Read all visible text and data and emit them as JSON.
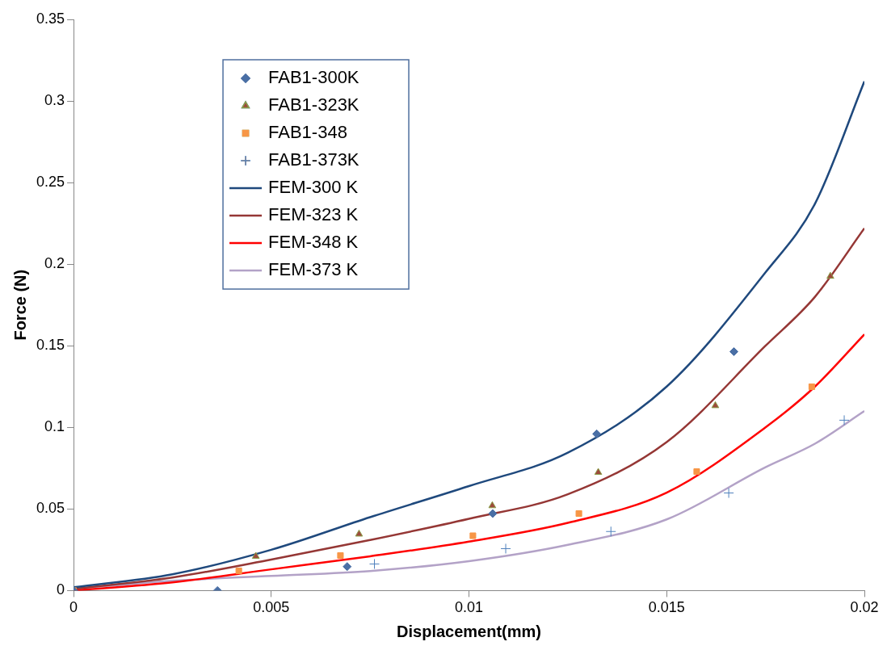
{
  "chart_data": {
    "type": "scatter",
    "xlabel": "Displacement(mm)",
    "ylabel": "Force (N)",
    "xlim": [
      0,
      0.02
    ],
    "ylim": [
      0,
      0.35
    ],
    "xticks": [
      0,
      0.005,
      0.01,
      0.015,
      0.02
    ],
    "yticks": [
      0,
      0.05,
      0.1,
      0.15,
      0.2,
      0.25,
      0.3,
      0.35
    ],
    "grid": false,
    "legend": "top left",
    "series": [
      {
        "name": "FAB1-300K",
        "marker": "diamond",
        "color": "#4a6fa5",
        "x": [
          0,
          0.00364,
          0.00692,
          0.0106,
          0.01323,
          0.0167
        ],
        "values": [
          0,
          0,
          0.0147,
          0.0472,
          0.096,
          0.1464
        ]
      },
      {
        "name": "FAB1-323K",
        "marker": "triangle",
        "color": "#9e4a3c",
        "x": [
          0,
          0.00461,
          0.00722,
          0.01059,
          0.01327,
          0.01623,
          0.01914
        ],
        "values": [
          0,
          0.021,
          0.0346,
          0.052,
          0.0724,
          0.1133,
          0.1926
        ]
      },
      {
        "name": "FAB1-348",
        "marker": "square",
        "color": "#f79646",
        "x": [
          0,
          0.00418,
          0.00675,
          0.0101,
          0.01278,
          0.01576,
          0.01867
        ],
        "values": [
          0,
          0.0121,
          0.0215,
          0.0336,
          0.0472,
          0.0729,
          0.1249
        ]
      },
      {
        "name": "FAB1-373K",
        "marker": "cross",
        "color": "#4f81bd",
        "x": [
          0,
          0.00761,
          0.01093,
          0.01359,
          0.01657,
          0.01949
        ],
        "values": [
          0,
          0.0163,
          0.0257,
          0.0362,
          0.0598,
          0.1044
        ]
      },
      {
        "name": "FEM-300 K",
        "type": "line",
        "marker": "none",
        "color": "#1f497d",
        "x": [
          0,
          0.0025,
          0.005,
          0.0075,
          0.01,
          0.0125,
          0.015,
          0.0175,
          0.01875,
          0.02
        ],
        "values": [
          0.002,
          0.01,
          0.025,
          0.045,
          0.064,
          0.0845,
          0.125,
          0.195,
          0.237,
          0.312
        ]
      },
      {
        "name": "FEM-323 K",
        "type": "line",
        "marker": "none",
        "color": "#953735",
        "x": [
          0,
          0.0025,
          0.005,
          0.0075,
          0.01,
          0.0125,
          0.015,
          0.0175,
          0.01875,
          0.02
        ],
        "values": [
          0.001,
          0.008,
          0.019,
          0.031,
          0.044,
          0.059,
          0.091,
          0.15,
          0.18,
          0.222
        ]
      },
      {
        "name": "FEM-348 K",
        "type": "line",
        "marker": "none",
        "color": "#ff0000",
        "x": [
          0,
          0.0025,
          0.005,
          0.0075,
          0.01,
          0.0125,
          0.015,
          0.0175,
          0.01875,
          0.02
        ],
        "values": [
          0,
          0.005,
          0.013,
          0.021,
          0.03,
          0.0415,
          0.06,
          0.1,
          0.125,
          0.157
        ]
      },
      {
        "name": "FEM-373 K",
        "type": "line",
        "marker": "none",
        "color": "#b3a2c7",
        "x": [
          0,
          0.0025,
          0.005,
          0.0075,
          0.01,
          0.0125,
          0.015,
          0.0175,
          0.01875,
          0.02
        ],
        "values": [
          0.001,
          0.006,
          0.009,
          0.012,
          0.018,
          0.028,
          0.0436,
          0.0756,
          0.09,
          0.11
        ]
      }
    ]
  }
}
